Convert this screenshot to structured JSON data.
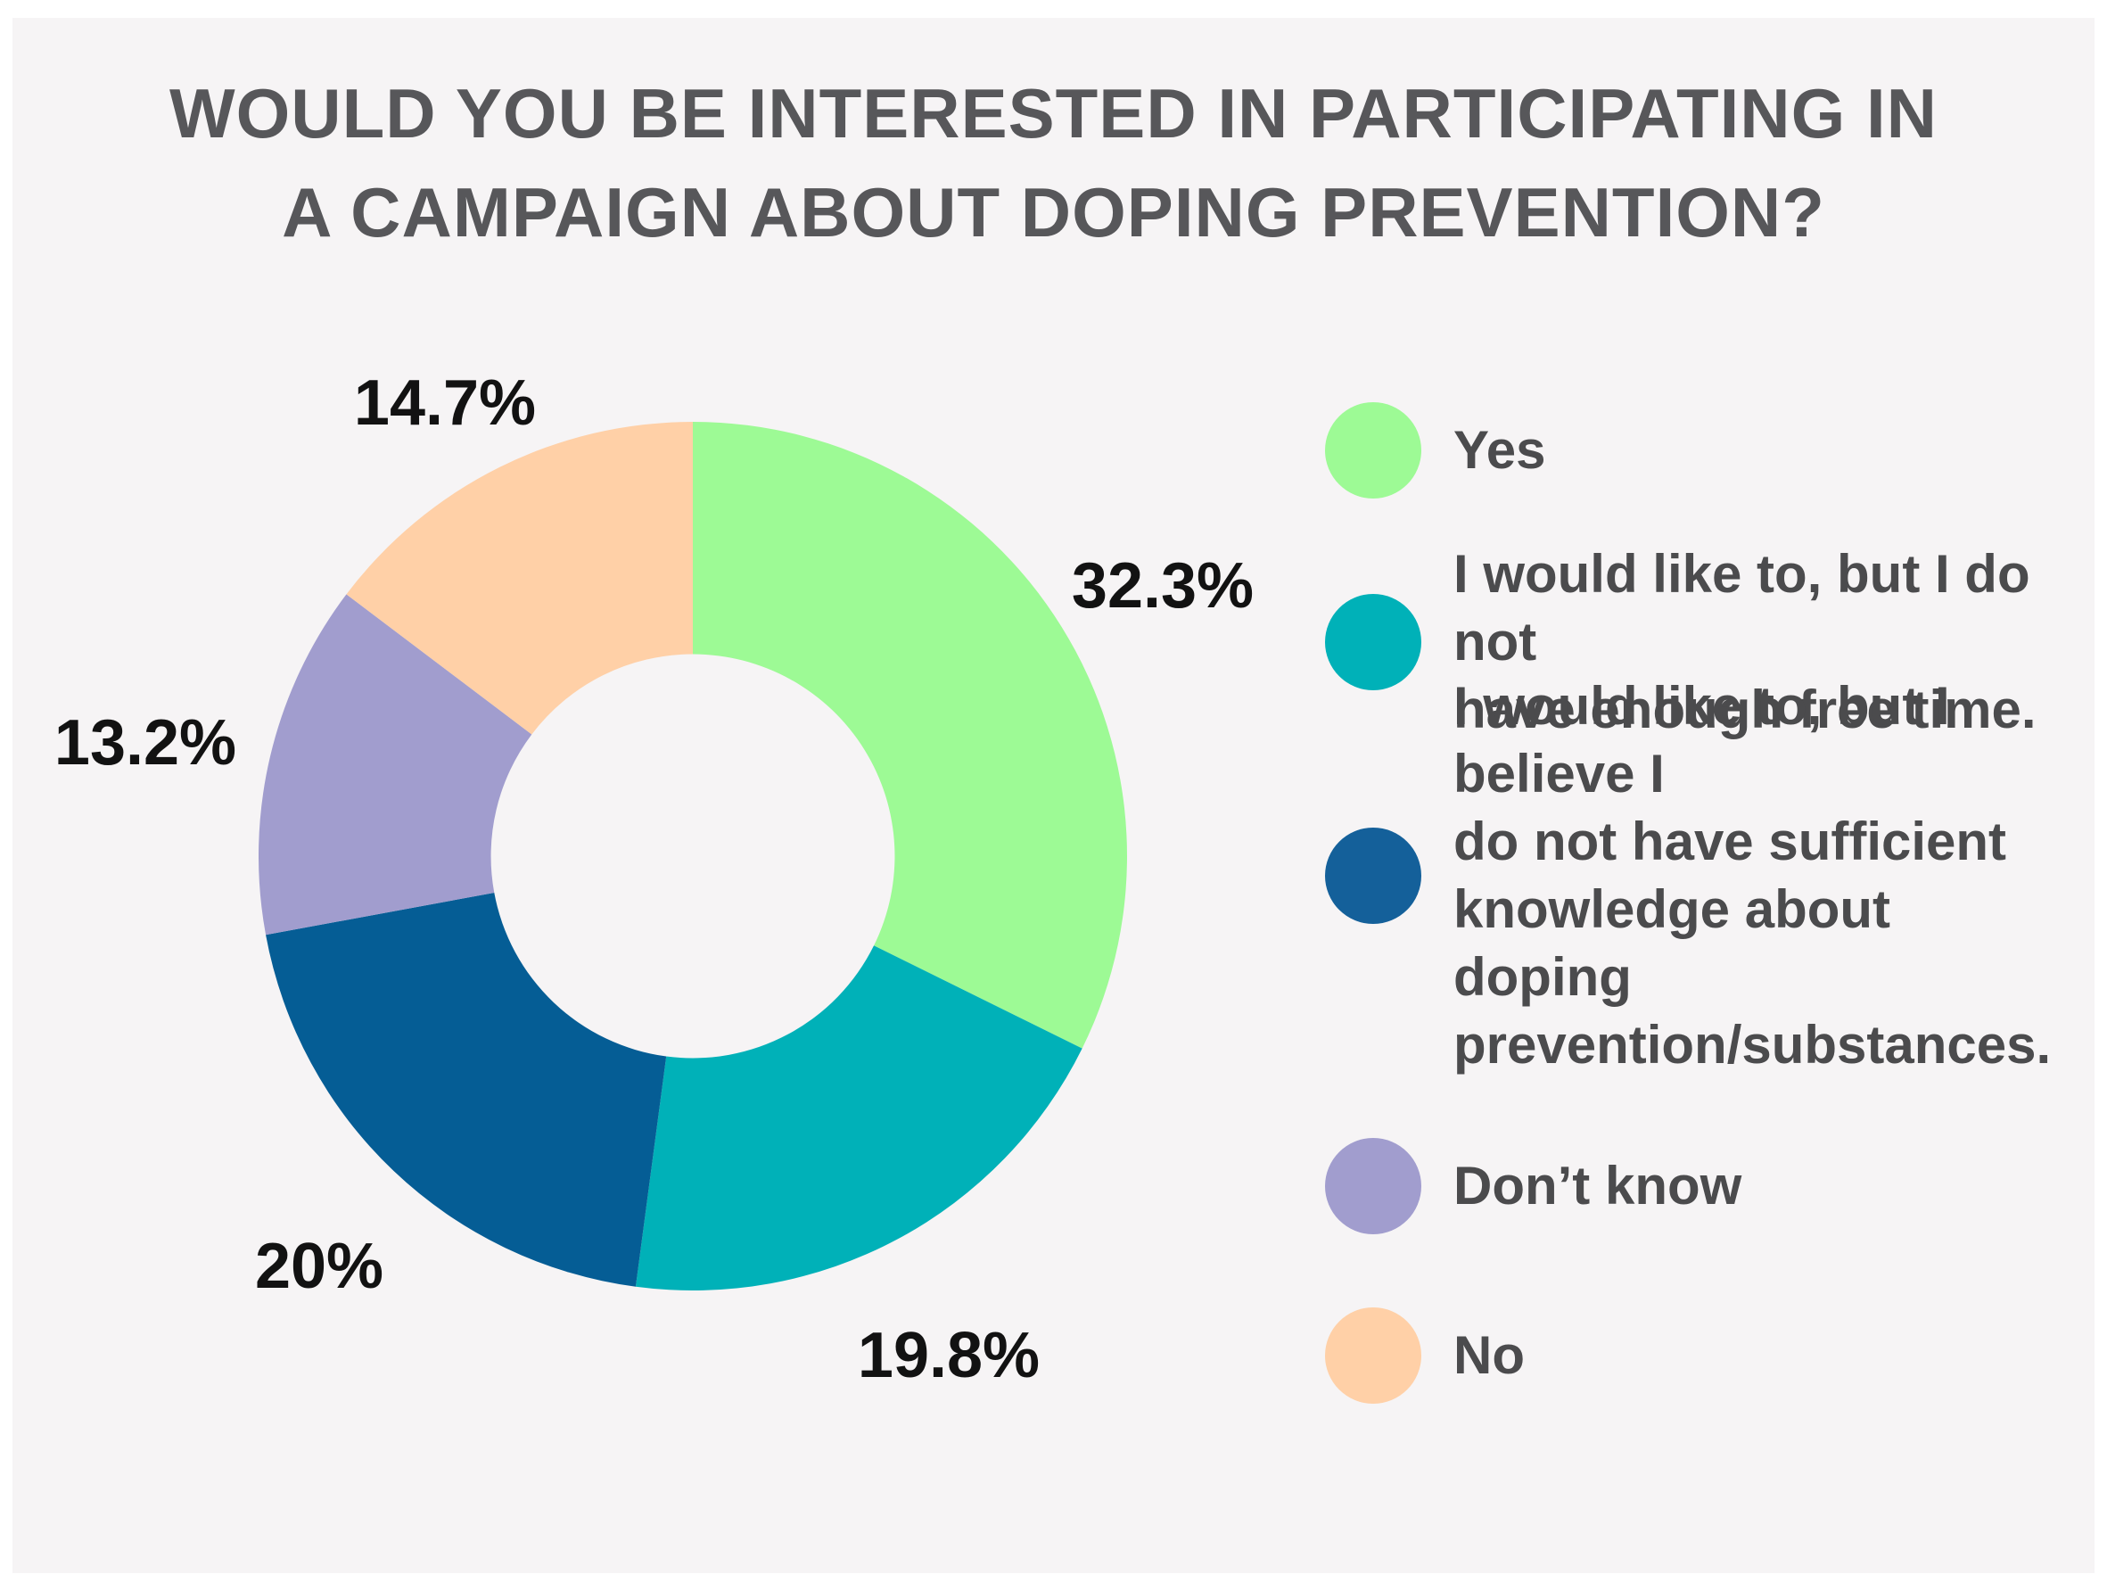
{
  "title": "WOULD YOU BE INTERESTED IN PARTICIPATING IN\nA CAMPAIGN ABOUT DOPING PREVENTION?",
  "chart_data": {
    "type": "pie",
    "subtype": "donut",
    "title": "WOULD YOU BE INTERESTED IN PARTICIPATING IN A CAMPAIGN ABOUT DOPING PREVENTION?",
    "categories": [
      "Yes",
      "I would like to, but I do not have enough free time.",
      "I would like to, but I believe I do not have sufficient knowledge about doping prevention/substances.",
      "Don’t know",
      "No"
    ],
    "values": [
      32.3,
      19.8,
      20,
      13.2,
      14.7
    ],
    "display_labels": [
      "32.3%",
      "19.8%",
      "20%",
      "13.2%",
      "14.7%"
    ],
    "colors": [
      "#9DFA95",
      "#00B1B8",
      "#055D95",
      "#A19DCE",
      "#FFD0A7"
    ],
    "start_angle_deg": 0,
    "direction": "clockwise",
    "donut_hole_ratio": 0.465,
    "legend_position": "right",
    "labels_position": "outside"
  },
  "legend": {
    "items": [
      {
        "label": "Yes",
        "color": "#9DFA95"
      },
      {
        "label": "I would like to, but I do not\nhave enough free time.",
        "color": "#00B1B8"
      },
      {
        "label": "I would like to, but I believe I\ndo not have sufficient\nknowledge about doping\nprevention/substances.",
        "color": "#14609A"
      },
      {
        "label": "Don’t know",
        "color": "#A19DCE"
      },
      {
        "label": "No",
        "color": "#FFD0A7"
      }
    ]
  },
  "colors": {
    "page_frame": "#FFFFFF",
    "panel_background": "#F6F4F5",
    "title_text": "#57575A",
    "value_label_text": "#121212",
    "legend_text": "#4B4B4D"
  }
}
